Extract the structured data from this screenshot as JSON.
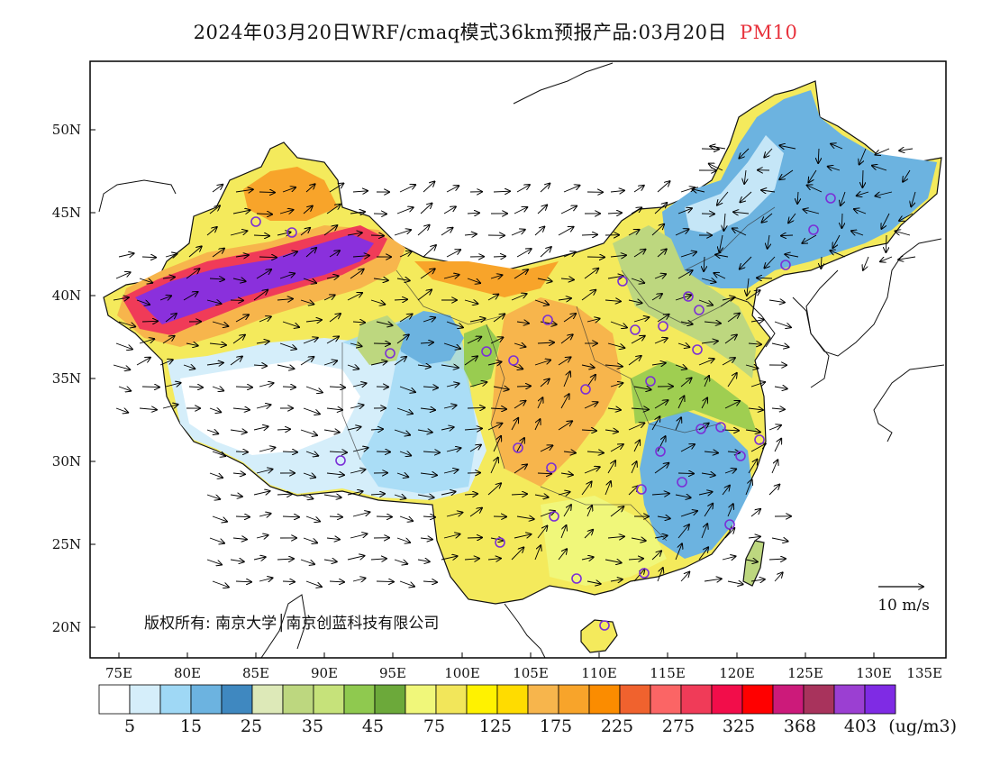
{
  "title": {
    "main": "2024年03月20日WRF/cmaq模式36km预报产品:03月20日",
    "pollutant": "PM10",
    "pollutant_color": "#e8323c"
  },
  "map": {
    "lat_labels": [
      "50N",
      "45N",
      "40N",
      "35N",
      "30N",
      "25N",
      "20N"
    ],
    "lon_labels": [
      "75E",
      "80E",
      "85E",
      "90E",
      "95E",
      "100E",
      "105E",
      "110E",
      "115E",
      "120E",
      "125E",
      "130E",
      "135E"
    ],
    "wind_reference": "10 m/s",
    "copyright": "版权所有: 南京大学│南京创蓝科技有限公司",
    "station_marker_color": "#7b2fd6"
  },
  "legend": {
    "unit": "(ug/m3)",
    "colors": [
      "#ffffff",
      "#d5eefa",
      "#9fd8f5",
      "#6cb3e0",
      "#3f88c0",
      "#dde9b8",
      "#bdd77f",
      "#c6e27a",
      "#8fc94f",
      "#6ca93a",
      "#f0f77a",
      "#f2e65a",
      "#fff200",
      "#ffdc00",
      "#f7b54c",
      "#f8a42a",
      "#fb8c00",
      "#f0622e",
      "#fb6565",
      "#f03b58",
      "#f20d4a",
      "#ff0000",
      "#cc1a7a",
      "#a8335c",
      "#9b3fd2",
      "#7f2be4"
    ],
    "labels": [
      "5",
      "15",
      "25",
      "35",
      "45",
      "75",
      "125",
      "175",
      "225",
      "275",
      "325",
      "368",
      "403"
    ]
  }
}
